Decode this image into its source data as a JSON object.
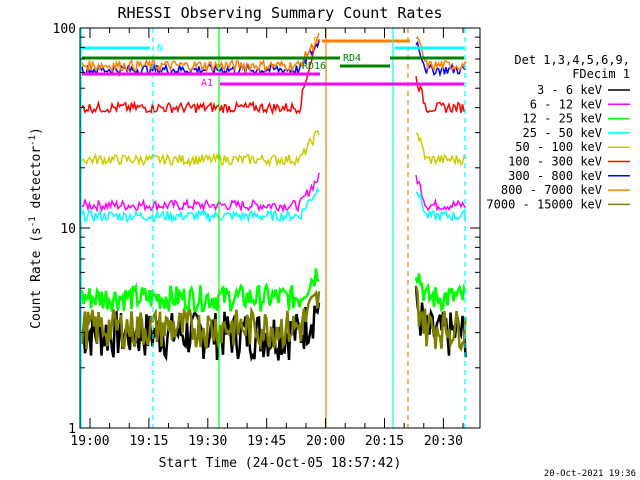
{
  "chart_data": {
    "type": "line",
    "title": "RHESSI Observing Summary Count Rates",
    "xlabel": "Start Time (24-Oct-05 18:57:42)",
    "ylabel": "Count Rate (s",
    "ylabel_sup": "-1",
    "ylabel_tail": " detector",
    "ylabel_tail_sup": "-1",
    "ylabel_close": ")",
    "y_scale": "log",
    "ylim": [
      1,
      100
    ],
    "y_tick_labels": [
      "1",
      "10",
      "100"
    ],
    "x_tick_labels": [
      "19:00",
      "19:15",
      "19:30",
      "19:45",
      "20:00",
      "20:15",
      "20:30"
    ],
    "footer_date": "20-Oct-2021 19:36",
    "legend": {
      "header1": "Det 1,3,4,5,6,9,",
      "header2": "FDecim 1",
      "placement": "right"
    },
    "series": [
      {
        "name": "3 - 6 keV",
        "color": "#000000",
        "level": 3.0
      },
      {
        "name": "6 - 12 keV",
        "color": "#ff00ff",
        "level": 13.0
      },
      {
        "name": "12 - 25 keV",
        "color": "#00ff00",
        "level": 4.5
      },
      {
        "name": "25 - 50 keV",
        "color": "#00ffff",
        "level": 11.5
      },
      {
        "name": "50 - 100 keV",
        "color": "#cccc00",
        "level": 22.0
      },
      {
        "name": "100 - 300 keV",
        "color": "#ff0000",
        "level": 40.0
      },
      {
        "name": "300 - 800 keV",
        "color": "#0000ff",
        "level": 62.0
      },
      {
        "name": "800 - 7000 keV",
        "color": "#ff8000",
        "level": 65.0
      },
      {
        "name": "7000 - 15000 keV",
        "color": "#808000",
        "level": 3.2
      }
    ],
    "annotations": [
      {
        "text": "S",
        "color": "#ff8000"
      },
      {
        "text": "N",
        "color": "#00ffff"
      },
      {
        "text": "RD4",
        "color": "#008000"
      },
      {
        "text": "RD16",
        "color": "#008000"
      },
      {
        "text": "A1",
        "color": "#ff00ff"
      }
    ],
    "colors": {
      "saa": "#ff8000",
      "night": "#00ffff",
      "decimation": "#008000",
      "attenuator": "#ff00ff"
    }
  }
}
